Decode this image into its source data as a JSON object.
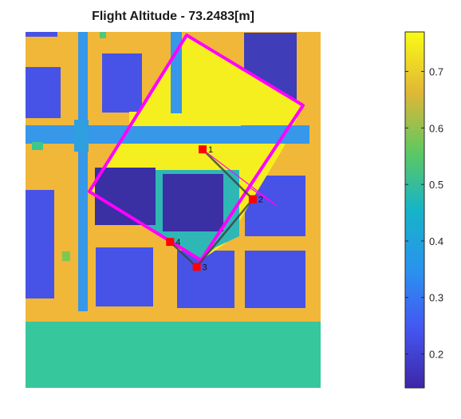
{
  "chart_data": {
    "type": "heatmap",
    "title": "Flight Altitude - 73.2483[m]",
    "xlabel": "",
    "ylabel": "",
    "axes_visible": false,
    "colormap": "parula",
    "colorbar": {
      "placement": "right",
      "limits": [
        0.14,
        0.77
      ],
      "ticks": [
        0.2,
        0.3,
        0.4,
        0.5,
        0.6,
        0.7
      ],
      "tick_labels": [
        "0.2",
        "0.3",
        "0.4",
        "0.5",
        "0.6",
        "0.7"
      ]
    },
    "cell_values": {
      "ground_outer": 0.44,
      "road": 0.66,
      "building_medium": 0.24,
      "building_dark": 0.18,
      "street_blue": 0.35,
      "footprint_high": 0.74,
      "footprint_mid": 0.42
    },
    "waypoints": [
      {
        "label": "1",
        "x": 0.6,
        "y": 0.67
      },
      {
        "label": "2",
        "x": 0.77,
        "y": 0.53
      },
      {
        "label": "3",
        "x": 0.58,
        "y": 0.34
      },
      {
        "label": "4",
        "x": 0.49,
        "y": 0.41
      }
    ],
    "flight_path_color": "#3d3d3d",
    "waypoint_color": "#ff0000",
    "coverage_color": "#ff00ff"
  }
}
